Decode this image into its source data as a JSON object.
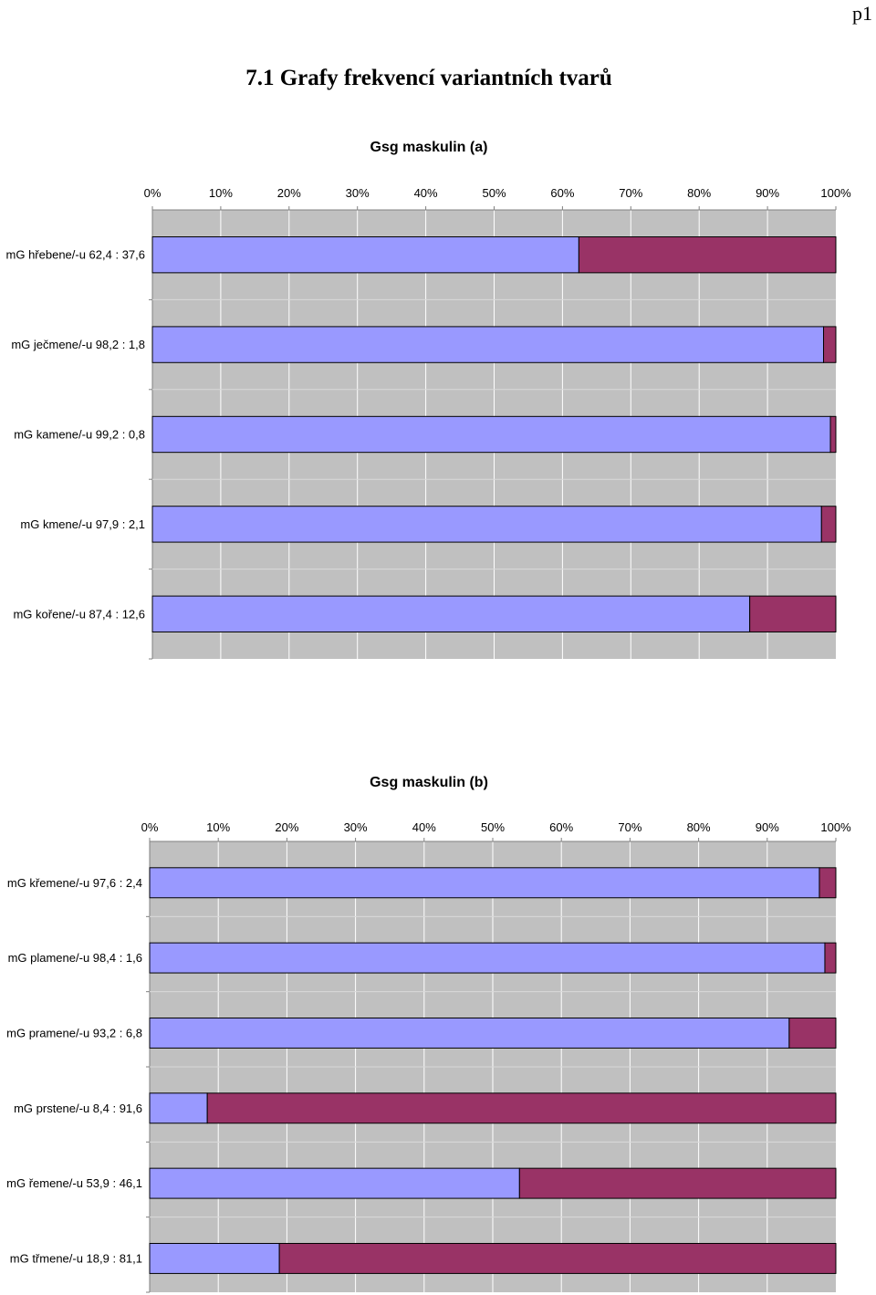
{
  "page_number": "p1",
  "section_title": "7.1 Grafy frekvencí variantních tvarů",
  "colors": {
    "series1": "#9999ff",
    "series2": "#993366",
    "plot_background": "#c0c0c0",
    "gridline": "#ffffff"
  },
  "chart_data": [
    {
      "type": "bar",
      "orientation": "horizontal",
      "stacked": "percent",
      "title": "Gsg maskulin (a)",
      "xlim": [
        0,
        100
      ],
      "x_tick_labels": [
        "0%",
        "10%",
        "20%",
        "30%",
        "40%",
        "50%",
        "60%",
        "70%",
        "80%",
        "90%",
        "100%"
      ],
      "grid": true,
      "categories": [
        "mG hřebene/-u 62,4 : 37,6",
        "mG ječmene/-u 98,2 : 1,8",
        "mG kamene/-u 99,2 : 0,8",
        "mG kmene/-u 97,9 : 2,1",
        "mG kořene/-u 87,4 : 12,6"
      ],
      "series": [
        {
          "values": [
            62.4,
            98.2,
            99.2,
            97.9,
            87.4
          ]
        },
        {
          "values": [
            37.6,
            1.8,
            0.8,
            2.1,
            12.6
          ]
        }
      ]
    },
    {
      "type": "bar",
      "orientation": "horizontal",
      "stacked": "percent",
      "title": "Gsg maskulin (b)",
      "xlim": [
        0,
        100
      ],
      "x_tick_labels": [
        "0%",
        "10%",
        "20%",
        "30%",
        "40%",
        "50%",
        "60%",
        "70%",
        "80%",
        "90%",
        "100%"
      ],
      "grid": true,
      "categories": [
        "mG křemene/-u 97,6 : 2,4",
        "mG plamene/-u 98,4 : 1,6",
        "mG pramene/-u 93,2 : 6,8",
        "mG prstene/-u 8,4 : 91,6",
        "mG řemene/-u 53,9 : 46,1",
        "mG třmene/-u 18,9 : 81,1"
      ],
      "series": [
        {
          "values": [
            97.6,
            98.4,
            93.2,
            8.4,
            53.9,
            18.9
          ]
        },
        {
          "values": [
            2.4,
            1.6,
            6.8,
            91.6,
            46.1,
            81.1
          ]
        }
      ]
    }
  ]
}
